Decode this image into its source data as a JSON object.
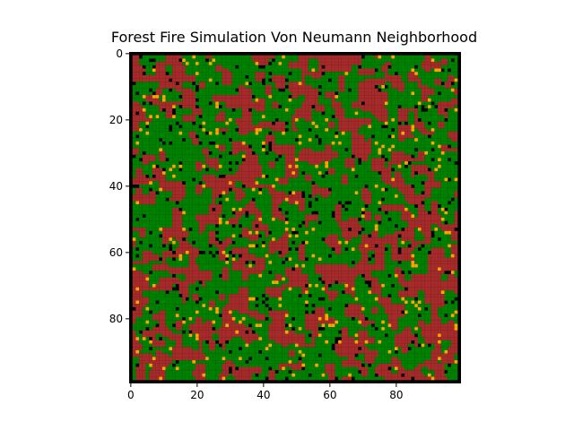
{
  "figure": {
    "title": "Forest Fire Simulation Von Neumann Neighborhood"
  },
  "chart_data": {
    "type": "heatmap",
    "title": "Forest Fire Simulation Von Neumann Neighborhood",
    "grid_size": [
      100,
      100
    ],
    "xlim": [
      0,
      99
    ],
    "ylim": [
      99,
      0
    ],
    "x_ticks": [
      0,
      20,
      40,
      60,
      80
    ],
    "y_ticks": [
      0,
      20,
      40,
      60,
      80
    ],
    "x_tick_labels": [
      "0",
      "20",
      "40",
      "60",
      "80"
    ],
    "y_tick_labels": [
      "0",
      "20",
      "40",
      "60",
      "80"
    ],
    "xlabel": "",
    "ylabel": "",
    "grid": false,
    "states": [
      {
        "value": 0,
        "color": "#000000"
      },
      {
        "value": 1,
        "color": "#008000"
      },
      {
        "value": 2,
        "color": "#FFA500"
      },
      {
        "value": 3,
        "color": "#A52A2A"
      }
    ],
    "approx_state_fractions": {
      "empty": 0.05,
      "tree": 0.42,
      "burning": 0.03,
      "burnt": 0.5
    }
  }
}
